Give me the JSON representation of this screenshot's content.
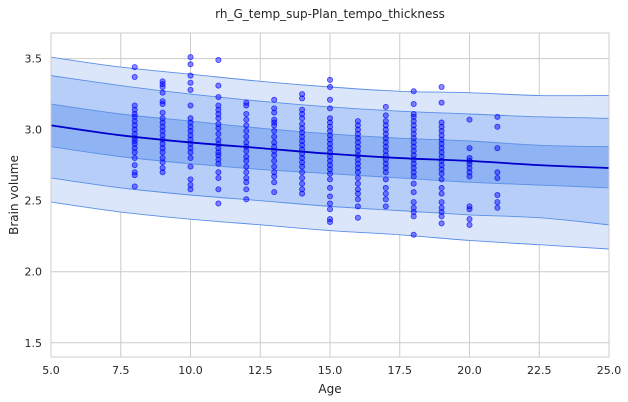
{
  "chart_data": {
    "type": "scatter",
    "title": "rh_G_temp_sup-Plan_tempo_thickness",
    "xlabel": "Age",
    "ylabel": "Brain volume",
    "xlim": [
      5.0,
      25.0
    ],
    "ylim": [
      1.4,
      3.68
    ],
    "xticks": [
      5.0,
      7.5,
      10.0,
      12.5,
      15.0,
      17.5,
      20.0,
      22.5,
      25.0
    ],
    "xtick_labels": [
      "5.0",
      "7.5",
      "10.0",
      "12.5",
      "15.0",
      "17.5",
      "20.0",
      "22.5",
      "25.0"
    ],
    "yticks": [
      1.5,
      2.0,
      2.5,
      3.0,
      3.5
    ],
    "ytick_labels": [
      "1.5",
      "2.0",
      "2.5",
      "3.0",
      "3.5"
    ],
    "grid": true,
    "colors": {
      "points": "#0000ff",
      "mean_line": "#0000cc",
      "band_outer": "#dbe6fb",
      "band_middle": "#b7cef8",
      "band_inner": "#8fb3f3",
      "band_edge": "#5b8fe6",
      "grid": "#cccccc"
    },
    "curves": {
      "x": [
        5.0,
        7.5,
        10.0,
        12.5,
        15.0,
        17.5,
        20.0,
        22.5,
        25.0
      ],
      "mean": [
        3.03,
        2.96,
        2.91,
        2.87,
        2.83,
        2.8,
        2.78,
        2.75,
        2.73
      ],
      "inner_upper": [
        3.18,
        3.11,
        3.06,
        3.01,
        2.97,
        2.94,
        2.92,
        2.89,
        2.88
      ],
      "inner_lower": [
        2.88,
        2.81,
        2.76,
        2.72,
        2.69,
        2.66,
        2.63,
        2.61,
        2.59
      ],
      "middle_upper": [
        3.38,
        3.31,
        3.25,
        3.2,
        3.16,
        3.13,
        3.11,
        3.09,
        3.08
      ],
      "middle_lower": [
        2.66,
        2.59,
        2.54,
        2.5,
        2.46,
        2.43,
        2.4,
        2.38,
        2.33
      ],
      "outer_upper": [
        3.51,
        3.44,
        3.39,
        3.34,
        3.3,
        3.27,
        3.26,
        3.24,
        3.24
      ],
      "outer_lower": [
        2.49,
        2.42,
        2.37,
        2.33,
        2.29,
        2.26,
        2.22,
        2.19,
        2.16
      ]
    },
    "points": [
      {
        "x": 8,
        "y": [
          3.44,
          3.37,
          3.17,
          3.14,
          3.11,
          3.09,
          3.06,
          3.03,
          3.0,
          2.97,
          2.94,
          2.92,
          2.9,
          2.87,
          2.84,
          2.8,
          2.75,
          2.7,
          2.68,
          2.6
        ]
      },
      {
        "x": 9,
        "y": [
          3.34,
          3.32,
          3.3,
          3.26,
          3.2,
          3.18,
          3.12,
          3.08,
          3.05,
          3.02,
          2.99,
          2.96,
          2.93,
          2.9,
          2.87,
          2.84,
          2.8,
          2.77,
          2.73,
          2.7
        ]
      },
      {
        "x": 10,
        "y": [
          3.51,
          3.46,
          3.38,
          3.33,
          3.28,
          3.17,
          3.08,
          3.05,
          3.02,
          2.99,
          2.96,
          2.93,
          2.9,
          2.87,
          2.84,
          2.8,
          2.74,
          2.65,
          2.61,
          2.58
        ]
      },
      {
        "x": 11,
        "y": [
          3.49,
          3.31,
          3.23,
          3.17,
          3.14,
          3.11,
          3.08,
          3.04,
          3.01,
          2.97,
          2.93,
          2.9,
          2.87,
          2.84,
          2.82,
          2.79,
          2.76,
          2.7,
          2.66,
          2.58,
          2.48
        ]
      },
      {
        "x": 12,
        "y": [
          3.19,
          3.17,
          3.11,
          3.07,
          3.03,
          2.99,
          2.95,
          2.91,
          2.88,
          2.85,
          2.81,
          2.78,
          2.74,
          2.7,
          2.66,
          2.63,
          2.58,
          2.51
        ]
      },
      {
        "x": 13,
        "y": [
          3.21,
          3.15,
          3.12,
          3.07,
          3.05,
          3.03,
          2.99,
          2.95,
          2.91,
          2.88,
          2.85,
          2.82,
          2.78,
          2.74,
          2.7,
          2.67,
          2.63,
          2.56
        ]
      },
      {
        "x": 14,
        "y": [
          3.25,
          3.22,
          3.14,
          3.11,
          3.08,
          3.04,
          3.01,
          2.98,
          2.95,
          2.92,
          2.89,
          2.86,
          2.83,
          2.8,
          2.77,
          2.74,
          2.7,
          2.66,
          2.62,
          2.58,
          2.55
        ]
      },
      {
        "x": 15,
        "y": [
          3.35,
          3.3,
          3.21,
          3.15,
          3.08,
          3.05,
          3.02,
          2.99,
          2.96,
          2.93,
          2.9,
          2.87,
          2.84,
          2.81,
          2.78,
          2.75,
          2.72,
          2.69,
          2.65,
          2.59,
          2.53,
          2.48,
          2.44,
          2.37,
          2.35
        ]
      },
      {
        "x": 16,
        "y": [
          3.06,
          3.03,
          3.0,
          2.97,
          2.94,
          2.91,
          2.88,
          2.85,
          2.82,
          2.79,
          2.76,
          2.73,
          2.7,
          2.66,
          2.62,
          2.58,
          2.55,
          2.51,
          2.46,
          2.38
        ]
      },
      {
        "x": 17,
        "y": [
          3.16,
          3.1,
          3.06,
          3.03,
          3.0,
          2.97,
          2.94,
          2.91,
          2.88,
          2.85,
          2.82,
          2.79,
          2.76,
          2.73,
          2.7,
          2.65,
          2.59,
          2.55,
          2.51,
          2.46
        ]
      },
      {
        "x": 18,
        "y": [
          3.27,
          3.18,
          3.11,
          3.09,
          3.06,
          3.03,
          3.0,
          2.97,
          2.94,
          2.91,
          2.88,
          2.85,
          2.82,
          2.79,
          2.76,
          2.73,
          2.7,
          2.67,
          2.62,
          2.56,
          2.49,
          2.45,
          2.42,
          2.39,
          2.26
        ]
      },
      {
        "x": 19,
        "y": [
          3.3,
          3.19,
          3.05,
          3.02,
          2.99,
          2.96,
          2.93,
          2.9,
          2.87,
          2.84,
          2.81,
          2.78,
          2.75,
          2.72,
          2.69,
          2.65,
          2.59,
          2.55,
          2.49,
          2.45,
          2.42,
          2.39,
          2.34
        ]
      },
      {
        "x": 20,
        "y": [
          3.07,
          2.87,
          2.8,
          2.78,
          2.76,
          2.73,
          2.7,
          2.67,
          2.46,
          2.44,
          2.37,
          2.33
        ]
      },
      {
        "x": 21,
        "y": [
          3.09,
          3.02,
          2.87,
          2.7,
          2.66,
          2.54,
          2.49,
          2.45
        ]
      }
    ]
  }
}
